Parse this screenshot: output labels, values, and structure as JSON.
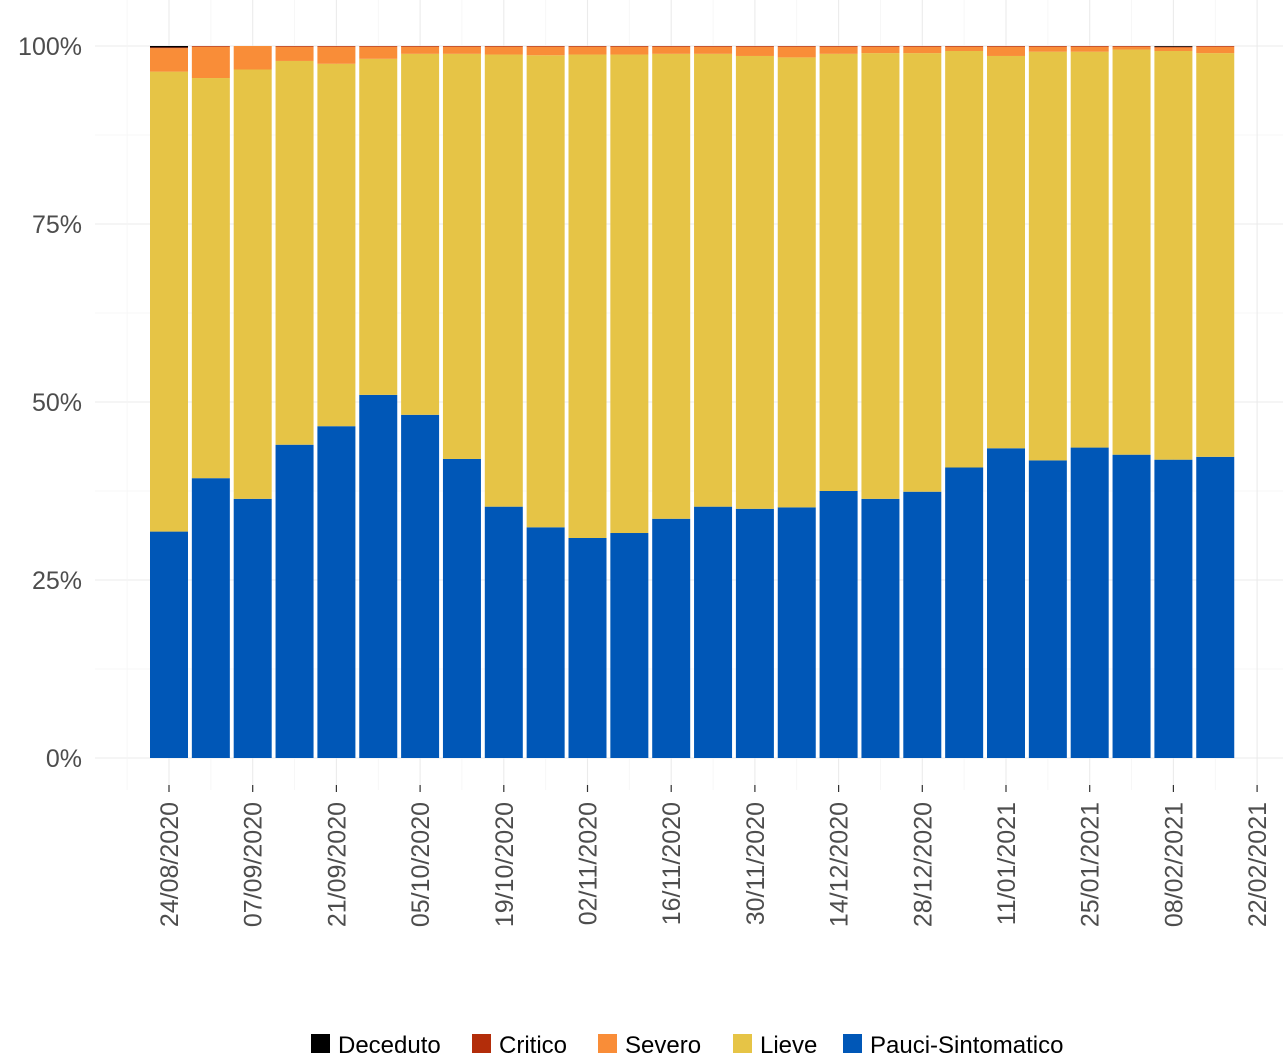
{
  "chart_data": {
    "type": "bar",
    "stacked": true,
    "percent": true,
    "title": "",
    "xlabel": "",
    "ylabel": "",
    "ylim": [
      0,
      100
    ],
    "y_ticks": [
      "0%",
      "25%",
      "50%",
      "75%",
      "100%"
    ],
    "y_tick_values": [
      0,
      25,
      50,
      75,
      100
    ],
    "x_tick_labels": [
      "24/08/2020",
      "07/09/2020",
      "21/09/2020",
      "05/10/2020",
      "19/10/2020",
      "02/11/2020",
      "16/11/2020",
      "30/11/2020",
      "14/12/2020",
      "28/12/2020",
      "11/01/2021",
      "25/01/2021",
      "08/02/2021",
      "22/02/2021"
    ],
    "categories": [
      "24/08/2020",
      "31/08/2020",
      "07/09/2020",
      "14/09/2020",
      "21/09/2020",
      "28/09/2020",
      "05/10/2020",
      "12/10/2020",
      "19/10/2020",
      "26/10/2020",
      "02/11/2020",
      "09/11/2020",
      "16/11/2020",
      "23/11/2020",
      "30/11/2020",
      "07/12/2020",
      "14/12/2020",
      "21/12/2020",
      "28/12/2020",
      "04/01/2021",
      "11/01/2021",
      "18/01/2021",
      "25/01/2021",
      "01/02/2021",
      "08/02/2021",
      "15/02/2021"
    ],
    "legend_position": "bottom",
    "grid": true,
    "series": [
      {
        "name": "Pauci-Sintomatico",
        "color": "#0057B7",
        "values": [
          31.8,
          39.3,
          36.4,
          44.0,
          46.6,
          51.0,
          48.2,
          42.0,
          35.3,
          32.4,
          30.9,
          31.6,
          33.6,
          35.3,
          35.0,
          35.2,
          37.5,
          36.4,
          37.4,
          40.8,
          43.5,
          41.8,
          43.6,
          42.6,
          41.9,
          42.3
        ]
      },
      {
        "name": "Lieve",
        "color": "#E6C446",
        "values": [
          64.6,
          56.2,
          60.3,
          53.9,
          50.9,
          47.2,
          50.7,
          56.9,
          63.5,
          66.3,
          67.9,
          67.2,
          65.3,
          63.6,
          63.6,
          63.2,
          61.4,
          62.6,
          61.6,
          58.5,
          55.1,
          57.4,
          55.6,
          56.9,
          57.4,
          56.7
        ]
      },
      {
        "name": "Severo",
        "color": "#F98D38",
        "values": [
          3.3,
          4.4,
          3.3,
          2.0,
          2.4,
          1.7,
          1.0,
          1.0,
          1.1,
          1.2,
          1.1,
          1.1,
          1.0,
          1.0,
          1.3,
          1.5,
          1.0,
          0.9,
          0.9,
          0.6,
          1.3,
          0.7,
          0.7,
          0.4,
          0.5,
          0.9
        ]
      },
      {
        "name": "Critico",
        "color": "#B32D0A",
        "values": [
          0.1,
          0.1,
          0.0,
          0.1,
          0.1,
          0.1,
          0.1,
          0.1,
          0.1,
          0.1,
          0.1,
          0.1,
          0.1,
          0.1,
          0.1,
          0.1,
          0.1,
          0.1,
          0.1,
          0.1,
          0.1,
          0.1,
          0.1,
          0.1,
          0.1,
          0.1
        ]
      },
      {
        "name": "Deceduto",
        "color": "#000000",
        "values": [
          0.2,
          0.0,
          0.0,
          0.0,
          0.0,
          0.0,
          0.0,
          0.0,
          0.0,
          0.0,
          0.0,
          0.0,
          0.0,
          0.0,
          0.0,
          0.0,
          0.0,
          0.0,
          0.0,
          0.0,
          0.0,
          0.0,
          0.0,
          0.0,
          0.1,
          0.0
        ]
      }
    ],
    "legend_order": [
      "Deceduto",
      "Critico",
      "Severo",
      "Lieve",
      "Pauci-Sintomatico"
    ]
  }
}
